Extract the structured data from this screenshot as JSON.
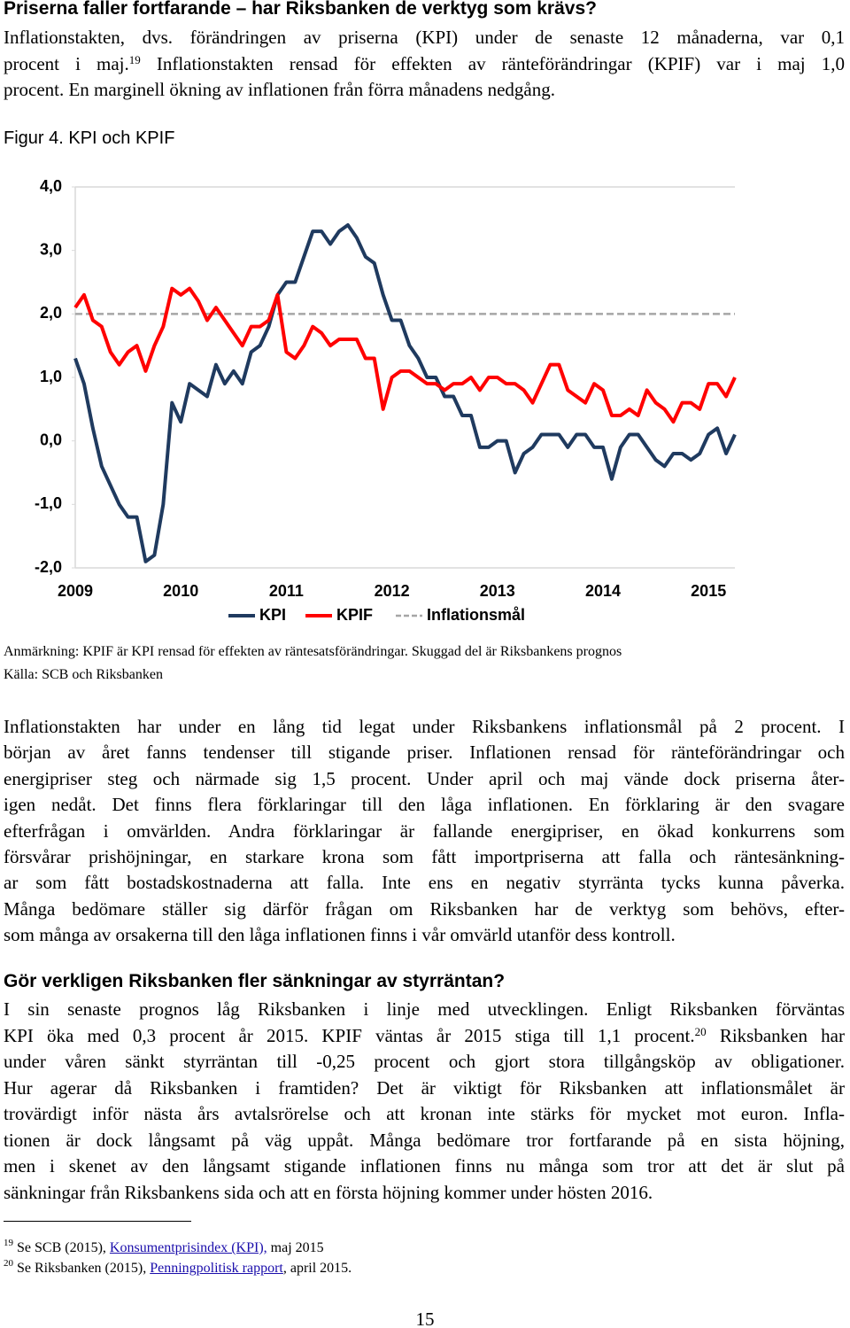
{
  "heading": "Priserna faller fortfarande – har Riksbanken de verktyg som krävs?",
  "intro": [
    "Inflationstakten, dvs. förändringen av priserna (KPI) under de senaste 12 månaderna, var 0,1",
    [
      "procent i maj.",
      "19",
      " Inflationstakten rensad för effekten av ränteförändringar (KPIF) var i maj 1,0"
    ],
    "procent. En marginell ökning av inflationen från förra månadens nedgång."
  ],
  "chart_data": {
    "type": "line",
    "title": "Figur 4. KPI och KPIF",
    "categories": [
      "2009",
      null,
      null,
      null,
      null,
      null,
      null,
      null,
      null,
      null,
      null,
      null,
      "2010",
      null,
      null,
      null,
      null,
      null,
      null,
      null,
      null,
      null,
      null,
      null,
      "2011",
      null,
      null,
      null,
      null,
      null,
      null,
      null,
      null,
      null,
      null,
      null,
      "2012",
      null,
      null,
      null,
      null,
      null,
      null,
      null,
      null,
      null,
      null,
      null,
      "2013",
      null,
      null,
      null,
      null,
      null,
      null,
      null,
      null,
      null,
      null,
      null,
      "2014",
      null,
      null,
      null,
      null,
      null,
      null,
      null,
      null,
      null,
      null,
      null,
      "2015",
      null,
      null,
      null
    ],
    "series": [
      {
        "name": "KPI",
        "color": "#1f3a5f",
        "dash": false,
        "values": [
          1.3,
          0.9,
          0.2,
          -0.4,
          -0.7,
          -1.0,
          -1.2,
          -1.2,
          -1.9,
          -1.8,
          -1.0,
          0.6,
          0.3,
          0.9,
          0.8,
          0.7,
          1.2,
          0.9,
          1.1,
          0.9,
          1.4,
          1.5,
          1.8,
          2.3,
          2.5,
          2.5,
          2.9,
          3.3,
          3.3,
          3.1,
          3.3,
          3.4,
          3.2,
          2.9,
          2.8,
          2.3,
          1.9,
          1.9,
          1.5,
          1.3,
          1.0,
          1.0,
          0.7,
          0.7,
          0.4,
          0.4,
          -0.1,
          -0.1,
          0.0,
          0.0,
          -0.5,
          -0.2,
          -0.1,
          0.1,
          0.1,
          0.1,
          -0.1,
          0.1,
          0.1,
          -0.1,
          -0.1,
          -0.6,
          -0.1,
          0.1,
          0.1,
          -0.1,
          -0.3,
          -0.4,
          -0.2,
          -0.2,
          -0.3,
          -0.2,
          0.1,
          0.2,
          -0.2,
          0.1
        ]
      },
      {
        "name": "KPIF",
        "color": "#ff0000",
        "dash": false,
        "values": [
          2.1,
          2.3,
          1.9,
          1.8,
          1.4,
          1.2,
          1.4,
          1.5,
          1.1,
          1.5,
          1.8,
          2.4,
          2.3,
          2.4,
          2.2,
          1.9,
          2.1,
          1.9,
          1.7,
          1.5,
          1.8,
          1.8,
          1.9,
          2.3,
          1.4,
          1.3,
          1.5,
          1.8,
          1.7,
          1.5,
          1.6,
          1.6,
          1.6,
          1.3,
          1.3,
          0.5,
          1.0,
          1.1,
          1.1,
          1.0,
          0.9,
          0.9,
          0.8,
          0.9,
          0.9,
          1.0,
          0.8,
          1.0,
          1.0,
          0.9,
          0.9,
          0.8,
          0.6,
          0.9,
          1.2,
          1.2,
          0.8,
          0.7,
          0.6,
          0.9,
          0.8,
          0.4,
          0.4,
          0.5,
          0.4,
          0.8,
          0.6,
          0.5,
          0.3,
          0.6,
          0.6,
          0.5,
          0.9,
          0.9,
          0.7,
          1.0
        ]
      },
      {
        "name": "Inflationsmål",
        "color": "#a6a6a6",
        "dash": true,
        "values": [
          2,
          2,
          2,
          2,
          2,
          2,
          2,
          2,
          2,
          2,
          2,
          2,
          2,
          2,
          2,
          2,
          2,
          2,
          2,
          2,
          2,
          2,
          2,
          2,
          2,
          2,
          2,
          2,
          2,
          2,
          2,
          2,
          2,
          2,
          2,
          2,
          2,
          2,
          2,
          2,
          2,
          2,
          2,
          2,
          2,
          2,
          2,
          2,
          2,
          2,
          2,
          2,
          2,
          2,
          2,
          2,
          2,
          2,
          2,
          2,
          2,
          2,
          2,
          2,
          2,
          2,
          2,
          2,
          2,
          2,
          2,
          2,
          2,
          2,
          2,
          2
        ]
      }
    ],
    "ylim": [
      -2,
      4
    ],
    "yticks": [
      {
        "value": 4,
        "label": "4,0"
      },
      {
        "value": 3,
        "label": "3,0"
      },
      {
        "value": 2,
        "label": "2,0"
      },
      {
        "value": 1,
        "label": "1,0"
      },
      {
        "value": 0,
        "label": "0,0"
      },
      {
        "value": -1,
        "label": "-1,0"
      },
      {
        "value": -2,
        "label": "-2,0"
      }
    ],
    "grid": false,
    "legend": "bottom",
    "note": "Anmärkning: KPIF är KPI rensad för effekten av räntesatsförändringar. Skuggad del är Riksbankens prognos",
    "source": "Källa: SCB och Riksbanken"
  },
  "paragraph_1": [
    "Inflationstakten har under en lång tid legat under Riksbankens inflationsmål på 2 procent. I",
    "början av året fanns tendenser till stigande priser. Inflationen rensad för ränteförändringar och",
    "energipriser steg och närmade sig 1,5 procent. Under april och maj vände dock priserna åter-",
    "igen nedåt. Det finns flera förklaringar till den låga inflationen. En förklaring är den svagare",
    "efterfrågan i omvärlden. Andra förklaringar är fallande energipriser, en ökad konkurrens som",
    "försvårar prishöjningar, en starkare krona som fått importpriserna att falla och räntesänkning-",
    "ar som fått bostadskostnaderna att falla. Inte ens en negativ styrränta tycks kunna påverka.",
    "Många bedömare ställer sig därför frågan om Riksbanken har de verktyg som behövs, efter-",
    "som många av orsakerna till den låga inflationen finns i vår omvärld utanför dess kontroll."
  ],
  "subheading": "Gör verkligen Riksbanken fler sänkningar av styrräntan?",
  "paragraph_2": [
    "I sin senaste prognos låg Riksbanken i linje med utvecklingen. Enligt Riksbanken förväntas",
    [
      "KPI öka med 0,3 procent år 2015. KPIF väntas år 2015 stiga till 1,1 procent.",
      "20",
      " Riksbanken har"
    ],
    "under våren sänkt styrräntan till -0,25 procent och gjort stora tillgångsköp av obligationer.",
    "Hur agerar då Riksbanken i framtiden? Det är viktigt för Riksbanken att inflationsmålet är",
    "trovärdigt inför nästa års avtalsrörelse och att kronan inte stärks för mycket mot euron. Infla-",
    "tionen är dock långsamt på väg uppåt. Många bedömare tror fortfarande på en sista höjning,",
    "men i skenet av den långsamt stigande inflationen finns nu många som tror att det är slut på",
    "sänkningar från Riksbankens sida och att en första höjning kommer under hösten 2016."
  ],
  "footnotes": [
    {
      "number": "19",
      "parts": [
        "Se SCB (2015), ",
        "Konsumentprisindex (KPI),",
        " maj 2015"
      ]
    },
    {
      "number": "20",
      "parts": [
        "Se Riksbanken (2015), ",
        "Penningpolitisk rapport",
        ", april 2015."
      ]
    }
  ],
  "page_number": "15"
}
